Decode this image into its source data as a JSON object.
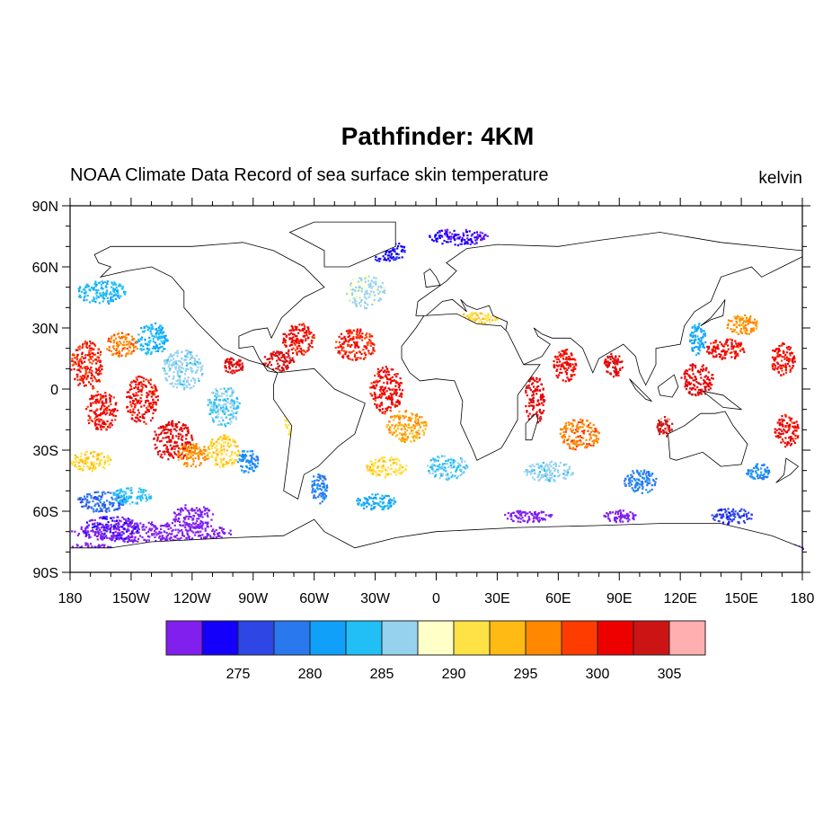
{
  "title": "Pathfinder: 4KM",
  "subtitle": "NOAA Climate Data Record of sea surface skin temperature",
  "units": "kelvin",
  "chart_data": {
    "type": "heatmap",
    "projection": "cylindrical-equidistant",
    "lon_range": [
      -180,
      180
    ],
    "lat_range": [
      -90,
      90
    ],
    "lat_ticks": [
      {
        "value": 90,
        "label": "90N"
      },
      {
        "value": 60,
        "label": "60N"
      },
      {
        "value": 30,
        "label": "30N"
      },
      {
        "value": 0,
        "label": "0"
      },
      {
        "value": -30,
        "label": "30S"
      },
      {
        "value": -60,
        "label": "60S"
      },
      {
        "value": -90,
        "label": "90S"
      }
    ],
    "lon_ticks": [
      {
        "value": -180,
        "label": "180"
      },
      {
        "value": -150,
        "label": "150W"
      },
      {
        "value": -120,
        "label": "120W"
      },
      {
        "value": -90,
        "label": "90W"
      },
      {
        "value": -60,
        "label": "60W"
      },
      {
        "value": -30,
        "label": "30W"
      },
      {
        "value": 0,
        "label": "0"
      },
      {
        "value": 30,
        "label": "30E"
      },
      {
        "value": 60,
        "label": "60E"
      },
      {
        "value": 90,
        "label": "90E"
      },
      {
        "value": 120,
        "label": "120E"
      },
      {
        "value": 150,
        "label": "150E"
      },
      {
        "value": 180,
        "label": "180"
      }
    ],
    "colorbar": {
      "min": 270,
      "step": 2.5,
      "colors": [
        "#8120EE",
        "#1400FA",
        "#2D46E4",
        "#2A78EE",
        "#10A0FA",
        "#22BEF6",
        "#96D2EE",
        "#FFFFC8",
        "#FFE246",
        "#FFBA14",
        "#FF8800",
        "#FF3C00",
        "#EE0000",
        "#CC1414",
        "#FFAFAF"
      ],
      "labels": [
        {
          "value": 275,
          "label": "275"
        },
        {
          "value": 280,
          "label": "280"
        },
        {
          "value": 285,
          "label": "285"
        },
        {
          "value": 290,
          "label": "290"
        },
        {
          "value": 295,
          "label": "295"
        },
        {
          "value": 300,
          "label": "300"
        },
        {
          "value": 305,
          "label": "305"
        }
      ]
    },
    "observations": [
      {
        "lon": -140,
        "lat": -70,
        "dlon": 40,
        "dlat": 5,
        "value": 271
      },
      {
        "lon": -160,
        "lat": -68,
        "dlon": 15,
        "dlat": 6,
        "value": 272
      },
      {
        "lon": -170,
        "lat": -78,
        "dlon": 10,
        "dlat": 3,
        "value": 271
      },
      {
        "lon": -120,
        "lat": -62,
        "dlon": 10,
        "dlat": 6,
        "value": 271
      },
      {
        "lon": -165,
        "lat": -55,
        "dlon": 12,
        "dlat": 5,
        "value": 278
      },
      {
        "lon": -150,
        "lat": -52,
        "dlon": 10,
        "dlat": 4,
        "value": 284
      },
      {
        "lon": -170,
        "lat": -35,
        "dlon": 10,
        "dlat": 5,
        "value": 292
      },
      {
        "lon": -172,
        "lat": 12,
        "dlon": 8,
        "dlat": 12,
        "value": 300
      },
      {
        "lon": -165,
        "lat": -10,
        "dlon": 8,
        "dlat": 10,
        "value": 301
      },
      {
        "lon": -155,
        "lat": 22,
        "dlon": 8,
        "dlat": 6,
        "value": 297
      },
      {
        "lon": -165,
        "lat": 48,
        "dlon": 12,
        "dlat": 6,
        "value": 283
      },
      {
        "lon": -140,
        "lat": 25,
        "dlon": 8,
        "dlat": 8,
        "value": 283
      },
      {
        "lon": -145,
        "lat": -5,
        "dlon": 8,
        "dlat": 12,
        "value": 301
      },
      {
        "lon": -130,
        "lat": -25,
        "dlon": 10,
        "dlat": 10,
        "value": 302
      },
      {
        "lon": -120,
        "lat": -32,
        "dlon": 8,
        "dlat": 6,
        "value": 296
      },
      {
        "lon": -125,
        "lat": 10,
        "dlon": 10,
        "dlat": 10,
        "value": 286
      },
      {
        "lon": -105,
        "lat": -30,
        "dlon": 8,
        "dlat": 8,
        "value": 292
      },
      {
        "lon": -105,
        "lat": -8,
        "dlon": 8,
        "dlat": 10,
        "value": 285
      },
      {
        "lon": -93,
        "lat": -35,
        "dlon": 5,
        "dlat": 6,
        "value": 280
      },
      {
        "lon": -100,
        "lat": 12,
        "dlon": 5,
        "dlat": 4,
        "value": 303
      },
      {
        "lon": -78,
        "lat": 14,
        "dlon": 8,
        "dlat": 5,
        "value": 303
      },
      {
        "lon": -68,
        "lat": 25,
        "dlon": 8,
        "dlat": 8,
        "value": 301
      },
      {
        "lon": -58,
        "lat": -48,
        "dlon": 4,
        "dlat": 8,
        "value": 279
      },
      {
        "lon": -72,
        "lat": -15,
        "dlon": 3,
        "dlat": 8,
        "value": 291
      },
      {
        "lon": -35,
        "lat": 48,
        "dlon": 10,
        "dlat": 8,
        "value": 287
      },
      {
        "lon": -40,
        "lat": 22,
        "dlon": 10,
        "dlat": 8,
        "value": 300
      },
      {
        "lon": -25,
        "lat": 0,
        "dlon": 8,
        "dlat": 12,
        "value": 301
      },
      {
        "lon": -15,
        "lat": -18,
        "dlon": 10,
        "dlat": 8,
        "value": 295
      },
      {
        "lon": -25,
        "lat": -38,
        "dlon": 10,
        "dlat": 5,
        "value": 292
      },
      {
        "lon": 5,
        "lat": -38,
        "dlon": 10,
        "dlat": 6,
        "value": 285
      },
      {
        "lon": -30,
        "lat": -55,
        "dlon": 10,
        "dlat": 4,
        "value": 282
      },
      {
        "lon": -25,
        "lat": 68,
        "dlon": 10,
        "dlat": 5,
        "value": 274
      },
      {
        "lon": 10,
        "lat": 75,
        "dlon": 15,
        "dlat": 4,
        "value": 273
      },
      {
        "lon": 18,
        "lat": 35,
        "dlon": 12,
        "dlat": 3,
        "value": 292
      },
      {
        "lon": 48,
        "lat": -5,
        "dlon": 5,
        "dlat": 12,
        "value": 302
      },
      {
        "lon": 63,
        "lat": 12,
        "dlon": 6,
        "dlat": 8,
        "value": 301
      },
      {
        "lon": 87,
        "lat": 12,
        "dlon": 5,
        "dlat": 6,
        "value": 302
      },
      {
        "lon": 70,
        "lat": -22,
        "dlon": 10,
        "dlat": 8,
        "value": 297
      },
      {
        "lon": 55,
        "lat": -40,
        "dlon": 12,
        "dlat": 5,
        "value": 286
      },
      {
        "lon": 45,
        "lat": -62,
        "dlon": 12,
        "dlat": 3,
        "value": 271
      },
      {
        "lon": 100,
        "lat": -45,
        "dlon": 8,
        "dlat": 6,
        "value": 279
      },
      {
        "lon": 112,
        "lat": -18,
        "dlon": 4,
        "dlat": 5,
        "value": 304
      },
      {
        "lon": 90,
        "lat": -62,
        "dlon": 8,
        "dlat": 3,
        "value": 271
      },
      {
        "lon": 145,
        "lat": -62,
        "dlon": 10,
        "dlat": 4,
        "value": 276
      },
      {
        "lon": 142,
        "lat": 20,
        "dlon": 10,
        "dlat": 5,
        "value": 301
      },
      {
        "lon": 150,
        "lat": 32,
        "dlon": 8,
        "dlat": 5,
        "value": 296
      },
      {
        "lon": 128,
        "lat": 25,
        "dlon": 4,
        "dlat": 8,
        "value": 282
      },
      {
        "lon": 128,
        "lat": 5,
        "dlon": 8,
        "dlat": 8,
        "value": 302
      },
      {
        "lon": 158,
        "lat": -40,
        "dlon": 6,
        "dlat": 4,
        "value": 280
      },
      {
        "lon": 172,
        "lat": -20,
        "dlon": 6,
        "dlat": 8,
        "value": 301
      },
      {
        "lon": 170,
        "lat": 15,
        "dlon": 6,
        "dlat": 8,
        "value": 301
      },
      {
        "lon": 175,
        "lat": -78,
        "dlon": 5,
        "dlat": 2,
        "value": 272
      }
    ]
  }
}
